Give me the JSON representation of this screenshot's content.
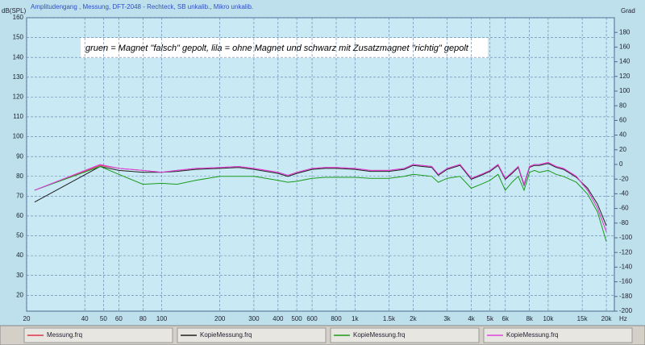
{
  "chart_data": {
    "type": "line",
    "title": "Amplitudengang , Messung, DFT-2048 - Rechteck, SB unkalib., Mikro unkalib.",
    "y_label": "dB(SPL)",
    "y2_label": "Grad",
    "x_label": "Hz",
    "annotation": "gruen = Magnet \"falsch\"  gepolt, lila = ohne Magnet und schwarz mit  Zusatzmagnet \"richtig\" gepolt",
    "x_scale": "log",
    "grid": true,
    "legend": "bottom",
    "xlim": [
      20,
      22000
    ],
    "ylim": [
      12,
      160
    ],
    "y2lim": [
      -200,
      200
    ],
    "xticks": [
      20,
      40,
      50,
      60,
      80,
      100,
      200,
      300,
      400,
      500,
      600,
      800,
      {
        "value": 1000,
        "label": "1k"
      },
      {
        "value": 1500,
        "label": "1.5k"
      },
      {
        "value": 2000,
        "label": "2k"
      },
      {
        "value": 3000,
        "label": "3k"
      },
      {
        "value": 4000,
        "label": "4k"
      },
      {
        "value": 5000,
        "label": "5k"
      },
      {
        "value": 6000,
        "label": "6k"
      },
      {
        "value": 8000,
        "label": "8k"
      },
      {
        "value": 10000,
        "label": "10k"
      },
      {
        "value": 15000,
        "label": "15k"
      },
      {
        "value": 20000,
        "label": "20k"
      }
    ],
    "yticks": [
      20,
      30,
      40,
      50,
      60,
      70,
      80,
      90,
      100,
      110,
      120,
      130,
      140,
      150,
      160
    ],
    "y2ticks": [
      -200,
      -180,
      -160,
      -140,
      -120,
      -100,
      -80,
      -60,
      -40,
      -20,
      0,
      20,
      40,
      60,
      80,
      100,
      120,
      140,
      160,
      180
    ],
    "x": [
      22,
      48,
      60,
      80,
      100,
      120,
      150,
      200,
      250,
      300,
      400,
      450,
      500,
      600,
      700,
      800,
      1000,
      1200,
      1500,
      1800,
      2000,
      2500,
      2700,
      3000,
      3500,
      4000,
      4500,
      5000,
      5500,
      6000,
      6500,
      7000,
      7500,
      8000,
      8500,
      9000,
      10000,
      11000,
      12000,
      14000,
      16000,
      18000,
      20000
    ],
    "series": [
      {
        "name": "Messung.frq",
        "color": "#e0304a",
        "values": [
          73,
          85.5,
          84,
          83,
          82,
          83,
          84,
          84.5,
          85,
          84,
          82,
          80.5,
          82,
          84,
          84.5,
          84.5,
          84,
          83,
          83,
          84,
          86,
          85,
          81,
          84,
          86,
          79,
          81,
          83,
          86,
          79,
          82,
          85,
          76,
          85,
          86,
          86,
          87,
          85,
          84,
          80,
          73,
          64,
          52
        ]
      },
      {
        "name": "KopieMessung.frq",
        "color": "#202020",
        "values": [
          67,
          85,
          83,
          82,
          82,
          82.5,
          83.5,
          84,
          84.5,
          83.5,
          81.5,
          80,
          81.5,
          83.5,
          84,
          84,
          83.5,
          82.5,
          82.5,
          83.5,
          85.5,
          84.5,
          80.5,
          83.5,
          85.5,
          78.5,
          80.5,
          82.5,
          85.5,
          78.5,
          81.5,
          84.5,
          75.5,
          84.5,
          85.5,
          85.5,
          86.5,
          84.5,
          83.5,
          79.5,
          74,
          66,
          55
        ]
      },
      {
        "name": "KopieMessung.frq",
        "color": "#1a9a1a",
        "values": [
          73,
          85,
          81,
          76,
          76.5,
          76,
          78,
          80,
          80,
          80,
          78,
          77,
          77.5,
          79,
          79.5,
          79.5,
          79.5,
          79,
          79,
          80,
          81,
          80,
          77,
          79,
          80,
          74,
          76,
          78,
          81,
          73,
          77,
          80,
          73,
          82,
          83,
          82,
          83,
          81,
          80,
          77,
          71,
          62,
          47
        ]
      },
      {
        "name": "KopieMessung.frq",
        "color": "#e040e0",
        "values": [
          73,
          86,
          84,
          83,
          82,
          83,
          84,
          84.5,
          85,
          84,
          82,
          80.5,
          82,
          84,
          84.5,
          84.5,
          84,
          83,
          83,
          84,
          86,
          85,
          81,
          84,
          86,
          79,
          81,
          83,
          86,
          79,
          82,
          85,
          76,
          85,
          86,
          86,
          87,
          85,
          84,
          80,
          73,
          64,
          52
        ]
      }
    ]
  }
}
